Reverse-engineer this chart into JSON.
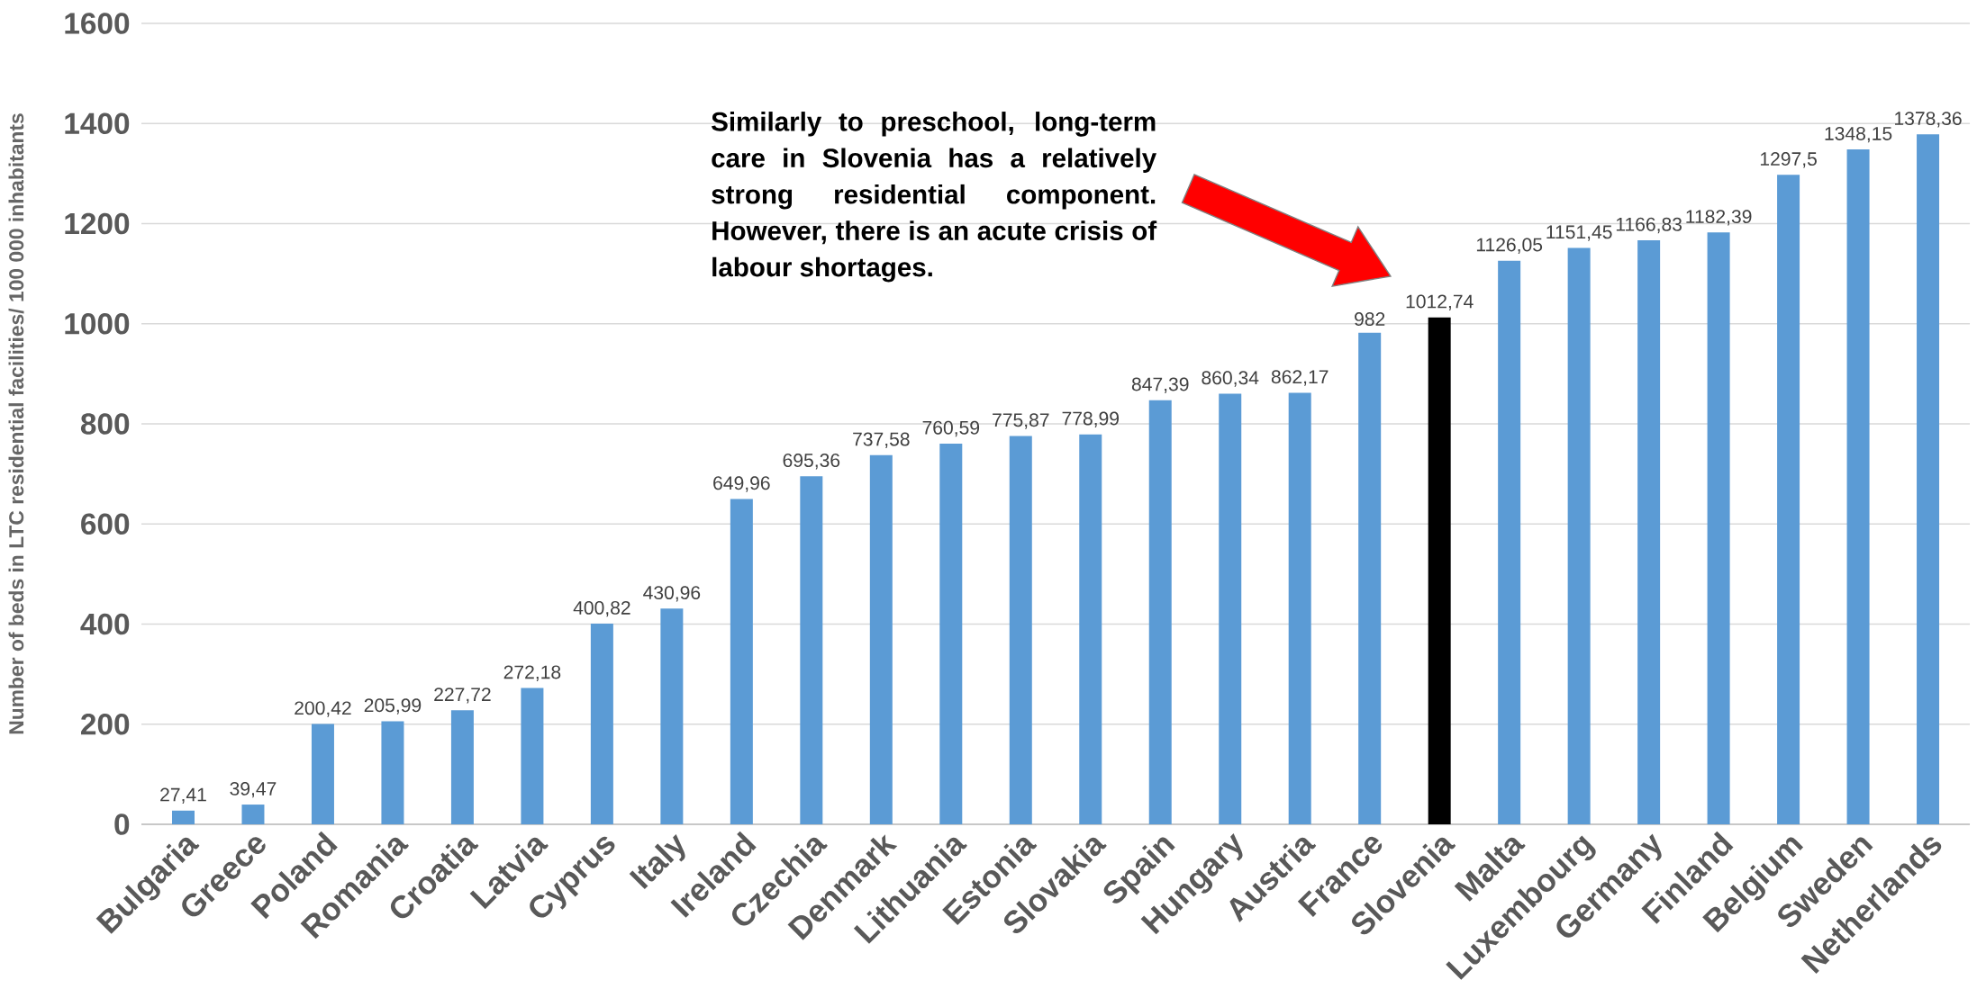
{
  "chart_data": {
    "type": "bar",
    "ylabel": "Number of beds in LTC residential facilities/ 100 000 inhabitants",
    "categories": [
      "Bulgaria",
      "Greece",
      "Poland",
      "Romania",
      "Croatia",
      "Latvia",
      "Cyprus",
      "Italy",
      "Ireland",
      "Czechia",
      "Denmark",
      "Lithuania",
      "Estonia",
      "Slovakia",
      "Spain",
      "Hungary",
      "Austria",
      "France",
      "Slovenia",
      "Malta",
      "Luxembourg",
      "Germany",
      "Finland",
      "Belgium",
      "Sweden",
      "Netherlands"
    ],
    "values": [
      27.41,
      39.47,
      200.42,
      205.99,
      227.72,
      272.18,
      400.82,
      430.96,
      649.96,
      695.36,
      737.58,
      760.59,
      775.87,
      778.99,
      847.39,
      860.34,
      862.17,
      982,
      1012.74,
      1126.05,
      1151.45,
      1166.83,
      1182.39,
      1297.5,
      1348.15,
      1378.36
    ],
    "value_labels": [
      "27,41",
      "39,47",
      "200,42",
      "205,99",
      "227,72",
      "272,18",
      "400,82",
      "430,96",
      "649,96",
      "695,36",
      "737,58",
      "760,59",
      "775,87",
      "778,99",
      "847,39",
      "860,34",
      "862,17",
      "982",
      "1012,74",
      "1126,05",
      "1151,45",
      "1166,83",
      "1182,39",
      "1297,5",
      "1348,15",
      "1378,36"
    ],
    "colors": [
      "#5b9bd5",
      "#5b9bd5",
      "#5b9bd5",
      "#5b9bd5",
      "#5b9bd5",
      "#5b9bd5",
      "#5b9bd5",
      "#5b9bd5",
      "#5b9bd5",
      "#5b9bd5",
      "#5b9bd5",
      "#5b9bd5",
      "#5b9bd5",
      "#5b9bd5",
      "#5b9bd5",
      "#5b9bd5",
      "#5b9bd5",
      "#5b9bd5",
      "#000000",
      "#5b9bd5",
      "#5b9bd5",
      "#5b9bd5",
      "#5b9bd5",
      "#5b9bd5",
      "#5b9bd5",
      "#5b9bd5"
    ],
    "ylim": [
      0,
      1600
    ],
    "yticks": [
      0,
      200,
      400,
      600,
      800,
      1000,
      1200,
      1400,
      1600
    ],
    "grid": "y",
    "annotations": [
      "Similarly to preschool, long-term care in Slovenia has a relatively strong residential component. However, there is an acute crisis of labour shortages."
    ]
  }
}
